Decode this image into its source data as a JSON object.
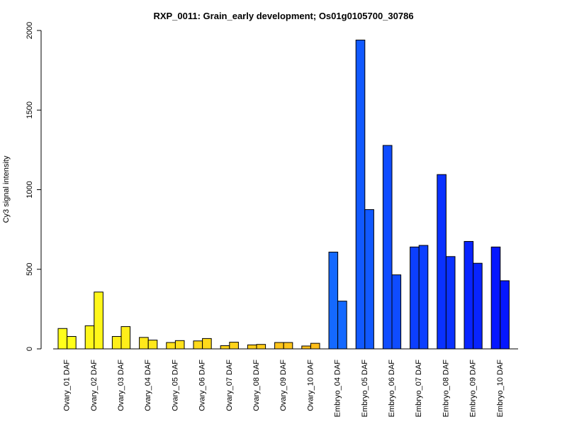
{
  "chart_data": {
    "type": "bar",
    "title": "RXP_0011: Grain_early development; Os01g0105700_30786",
    "xlabel": "",
    "ylabel": "Cy3 signal intensity",
    "ylim": [
      0,
      2000
    ],
    "yticks": [
      0,
      500,
      1000,
      1500,
      2000
    ],
    "grid": false,
    "legend": "none",
    "categories": [
      "Ovary_01 DAF",
      "Ovary_02 DAF",
      "Ovary_03 DAF",
      "Ovary_04 DAF",
      "Ovary_05 DAF",
      "Ovary_06 DAF",
      "Ovary_07 DAF",
      "Ovary_08 DAF",
      "Ovary_09 DAF",
      "Ovary_10 DAF",
      "Embryo_04 DAF",
      "Embryo_05 DAF",
      "Embryo_06 DAF",
      "Embryo_07 DAF",
      "Embryo_08 DAF",
      "Embryo_09 DAF",
      "Embryo_10 DAF"
    ],
    "colors": [
      "#ffff1a",
      "#fff71a",
      "#ffef1a",
      "#ffe81a",
      "#ffe11a",
      "#ffda1a",
      "#ffd31a",
      "#ffcc1a",
      "#ffc51a",
      "#ffbe1a",
      "#1469ff",
      "#1159ff",
      "#0f4cff",
      "#0c3fff",
      "#0a31ff",
      "#0824ff",
      "#0517ff"
    ],
    "series": [
      {
        "values": [
          128,
          145,
          78,
          72,
          40,
          50,
          20,
          25,
          40,
          18,
          608,
          1940,
          1278,
          640,
          1095,
          675,
          640
        ]
      },
      {
        "values": [
          78,
          357,
          140,
          55,
          52,
          65,
          42,
          28,
          40,
          35,
          300,
          875,
          465,
          650,
          580,
          538,
          428
        ]
      }
    ]
  }
}
